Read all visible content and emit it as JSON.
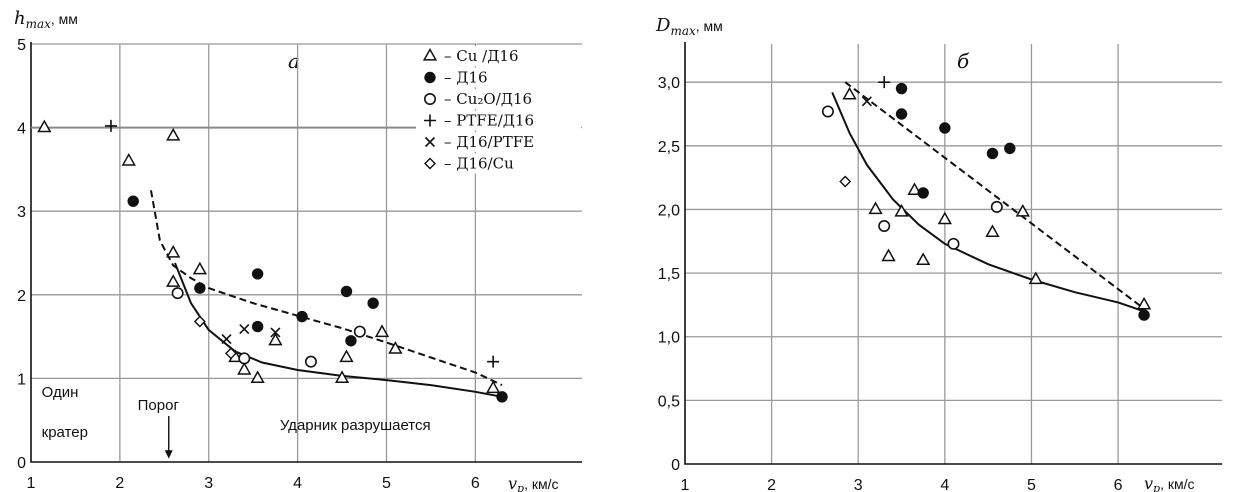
{
  "chart_data": [
    {
      "panel_label": "а",
      "type": "scatter",
      "ylabel": "h_max, мм",
      "xlabel": "v_p, км/с",
      "xlim": [
        1,
        7.2
      ],
      "ylim": [
        0,
        5
      ],
      "xticks": [
        1,
        2,
        3,
        4,
        5,
        6
      ],
      "yticks": [
        0,
        1,
        2,
        3,
        4,
        5
      ],
      "grid": true,
      "legend_position": "top-right",
      "legend": [
        {
          "marker": "triangle",
          "label": "– Cu /Д16"
        },
        {
          "marker": "filled-circle",
          "label": "– Д16"
        },
        {
          "marker": "open-circle",
          "label": "– Cu₂O/Д16"
        },
        {
          "marker": "plus",
          "label": "– PTFE/Д16"
        },
        {
          "marker": "cross",
          "label": "– Д16/PTFE"
        },
        {
          "marker": "diamond",
          "label": "– Д16/Cu"
        }
      ],
      "series": [
        {
          "marker": "triangle",
          "points": [
            [
              1.15,
              4.0
            ],
            [
              2.1,
              3.6
            ],
            [
              2.6,
              3.9
            ],
            [
              2.6,
              2.5
            ],
            [
              2.9,
              2.3
            ],
            [
              2.6,
              2.15
            ],
            [
              3.3,
              1.25
            ],
            [
              3.4,
              1.1
            ],
            [
              3.55,
              1.0
            ],
            [
              3.75,
              1.45
            ],
            [
              4.5,
              1.0
            ],
            [
              4.55,
              1.25
            ],
            [
              4.95,
              1.55
            ],
            [
              5.1,
              1.35
            ],
            [
              6.2,
              0.88
            ]
          ]
        },
        {
          "marker": "filled-circle",
          "points": [
            [
              2.15,
              3.12
            ],
            [
              2.9,
              2.08
            ],
            [
              3.55,
              2.25
            ],
            [
              3.55,
              1.62
            ],
            [
              4.05,
              1.74
            ],
            [
              4.55,
              2.04
            ],
            [
              4.6,
              1.45
            ],
            [
              4.85,
              1.9
            ],
            [
              6.3,
              0.78
            ]
          ]
        },
        {
          "marker": "open-circle",
          "points": [
            [
              2.65,
              2.02
            ],
            [
              3.4,
              1.24
            ],
            [
              4.15,
              1.2
            ],
            [
              4.7,
              1.56
            ]
          ]
        },
        {
          "marker": "plus",
          "points": [
            [
              1.9,
              4.02
            ],
            [
              6.2,
              1.2
            ]
          ]
        },
        {
          "marker": "cross",
          "points": [
            [
              3.2,
              1.47
            ],
            [
              3.4,
              1.59
            ],
            [
              3.75,
              1.55
            ]
          ]
        },
        {
          "marker": "diamond",
          "points": [
            [
              2.9,
              1.68
            ],
            [
              3.25,
              1.3
            ]
          ]
        }
      ],
      "curves": [
        {
          "style": "solid",
          "points": [
            [
              2.62,
              2.38
            ],
            [
              2.8,
              1.9
            ],
            [
              3.0,
              1.58
            ],
            [
              3.3,
              1.32
            ],
            [
              3.6,
              1.19
            ],
            [
              4.0,
              1.1
            ],
            [
              4.5,
              1.03
            ],
            [
              5.0,
              0.98
            ],
            [
              5.5,
              0.92
            ],
            [
              6.0,
              0.84
            ],
            [
              6.3,
              0.78
            ]
          ]
        },
        {
          "style": "dashed",
          "points": [
            [
              2.35,
              3.25
            ],
            [
              2.45,
              2.65
            ],
            [
              2.6,
              2.35
            ],
            [
              2.8,
              2.2
            ],
            [
              3.0,
              2.08
            ],
            [
              3.5,
              1.9
            ],
            [
              4.0,
              1.75
            ],
            [
              4.5,
              1.6
            ],
            [
              5.0,
              1.43
            ],
            [
              5.5,
              1.25
            ],
            [
              6.0,
              1.07
            ],
            [
              6.3,
              0.92
            ]
          ]
        }
      ],
      "threshold_line": {
        "y": 4.0,
        "x_range": [
          1.0,
          5.5
        ]
      },
      "annotations": [
        {
          "text": "Один",
          "x": 1.12,
          "y": 0.78
        },
        {
          "text": "кратер",
          "x": 1.12,
          "y": 0.3
        },
        {
          "text": "Порог",
          "x": 2.2,
          "y": 0.62
        },
        {
          "text": "Ударник разрушается",
          "x": 3.8,
          "y": 0.38
        }
      ],
      "threshold_arrow_x": 2.55
    },
    {
      "panel_label": "б",
      "type": "scatter",
      "ylabel": "D_max, мм",
      "xlabel": "v_p, км/с",
      "xlim": [
        1,
        7.2
      ],
      "ylim": [
        0,
        3.3
      ],
      "xticks": [
        1,
        2,
        3,
        4,
        5,
        6
      ],
      "yticks": [
        "0",
        "0,5",
        "1,0",
        "1,5",
        "2,0",
        "2,5",
        "3,0"
      ],
      "ytick_values": [
        0,
        0.5,
        1.0,
        1.5,
        2.0,
        2.5,
        3.0
      ],
      "grid": true,
      "series": [
        {
          "marker": "triangle",
          "points": [
            [
              2.9,
              2.9
            ],
            [
              3.2,
              2.0
            ],
            [
              3.35,
              1.63
            ],
            [
              3.5,
              1.98
            ],
            [
              3.65,
              2.15
            ],
            [
              3.75,
              1.6
            ],
            [
              4.0,
              1.92
            ],
            [
              4.55,
              1.82
            ],
            [
              4.9,
              1.98
            ],
            [
              5.05,
              1.45
            ],
            [
              6.3,
              1.25
            ]
          ]
        },
        {
          "marker": "filled-circle",
          "points": [
            [
              3.5,
              2.95
            ],
            [
              3.5,
              2.75
            ],
            [
              3.75,
              2.13
            ],
            [
              4.0,
              2.64
            ],
            [
              4.55,
              2.44
            ],
            [
              4.75,
              2.48
            ],
            [
              6.3,
              1.17
            ]
          ]
        },
        {
          "marker": "open-circle",
          "points": [
            [
              2.65,
              2.77
            ],
            [
              3.3,
              1.87
            ],
            [
              4.1,
              1.73
            ],
            [
              4.6,
              2.02
            ]
          ]
        },
        {
          "marker": "plus",
          "points": [
            [
              3.3,
              3.0
            ]
          ]
        },
        {
          "marker": "cross",
          "points": [
            [
              3.1,
              2.85
            ]
          ]
        },
        {
          "marker": "diamond",
          "points": [
            [
              2.85,
              2.22
            ]
          ]
        }
      ],
      "curves": [
        {
          "style": "solid",
          "points": [
            [
              2.7,
              2.92
            ],
            [
              2.9,
              2.6
            ],
            [
              3.1,
              2.35
            ],
            [
              3.4,
              2.08
            ],
            [
              3.7,
              1.88
            ],
            [
              4.0,
              1.73
            ],
            [
              4.5,
              1.57
            ],
            [
              5.0,
              1.45
            ],
            [
              5.5,
              1.35
            ],
            [
              6.0,
              1.27
            ],
            [
              6.3,
              1.2
            ]
          ]
        },
        {
          "style": "dashed",
          "points": [
            [
              2.85,
              3.0
            ],
            [
              6.3,
              1.22
            ]
          ]
        }
      ]
    }
  ]
}
